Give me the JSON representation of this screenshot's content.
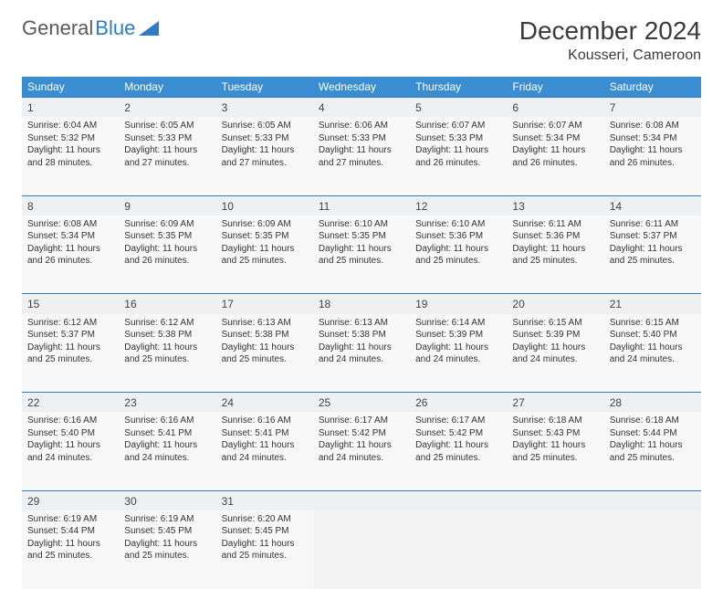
{
  "logo": {
    "text1": "General",
    "text2": "Blue"
  },
  "title": "December 2024",
  "location": "Kousseri, Cameroon",
  "colors": {
    "header_bg": "#3a8dd0",
    "header_text": "#ffffff",
    "accent": "#2d7cc4",
    "daynum_bg": "#eef0f1",
    "cell_bg": "#f8f8f8",
    "text": "#333333"
  },
  "weekdays": [
    "Sunday",
    "Monday",
    "Tuesday",
    "Wednesday",
    "Thursday",
    "Friday",
    "Saturday"
  ],
  "weeks": [
    [
      {
        "n": "1",
        "sunrise": "6:04 AM",
        "sunset": "5:32 PM",
        "daylight": "11 hours and 28 minutes."
      },
      {
        "n": "2",
        "sunrise": "6:05 AM",
        "sunset": "5:33 PM",
        "daylight": "11 hours and 27 minutes."
      },
      {
        "n": "3",
        "sunrise": "6:05 AM",
        "sunset": "5:33 PM",
        "daylight": "11 hours and 27 minutes."
      },
      {
        "n": "4",
        "sunrise": "6:06 AM",
        "sunset": "5:33 PM",
        "daylight": "11 hours and 27 minutes."
      },
      {
        "n": "5",
        "sunrise": "6:07 AM",
        "sunset": "5:33 PM",
        "daylight": "11 hours and 26 minutes."
      },
      {
        "n": "6",
        "sunrise": "6:07 AM",
        "sunset": "5:34 PM",
        "daylight": "11 hours and 26 minutes."
      },
      {
        "n": "7",
        "sunrise": "6:08 AM",
        "sunset": "5:34 PM",
        "daylight": "11 hours and 26 minutes."
      }
    ],
    [
      {
        "n": "8",
        "sunrise": "6:08 AM",
        "sunset": "5:34 PM",
        "daylight": "11 hours and 26 minutes."
      },
      {
        "n": "9",
        "sunrise": "6:09 AM",
        "sunset": "5:35 PM",
        "daylight": "11 hours and 26 minutes."
      },
      {
        "n": "10",
        "sunrise": "6:09 AM",
        "sunset": "5:35 PM",
        "daylight": "11 hours and 25 minutes."
      },
      {
        "n": "11",
        "sunrise": "6:10 AM",
        "sunset": "5:35 PM",
        "daylight": "11 hours and 25 minutes."
      },
      {
        "n": "12",
        "sunrise": "6:10 AM",
        "sunset": "5:36 PM",
        "daylight": "11 hours and 25 minutes."
      },
      {
        "n": "13",
        "sunrise": "6:11 AM",
        "sunset": "5:36 PM",
        "daylight": "11 hours and 25 minutes."
      },
      {
        "n": "14",
        "sunrise": "6:11 AM",
        "sunset": "5:37 PM",
        "daylight": "11 hours and 25 minutes."
      }
    ],
    [
      {
        "n": "15",
        "sunrise": "6:12 AM",
        "sunset": "5:37 PM",
        "daylight": "11 hours and 25 minutes."
      },
      {
        "n": "16",
        "sunrise": "6:12 AM",
        "sunset": "5:38 PM",
        "daylight": "11 hours and 25 minutes."
      },
      {
        "n": "17",
        "sunrise": "6:13 AM",
        "sunset": "5:38 PM",
        "daylight": "11 hours and 25 minutes."
      },
      {
        "n": "18",
        "sunrise": "6:13 AM",
        "sunset": "5:38 PM",
        "daylight": "11 hours and 24 minutes."
      },
      {
        "n": "19",
        "sunrise": "6:14 AM",
        "sunset": "5:39 PM",
        "daylight": "11 hours and 24 minutes."
      },
      {
        "n": "20",
        "sunrise": "6:15 AM",
        "sunset": "5:39 PM",
        "daylight": "11 hours and 24 minutes."
      },
      {
        "n": "21",
        "sunrise": "6:15 AM",
        "sunset": "5:40 PM",
        "daylight": "11 hours and 24 minutes."
      }
    ],
    [
      {
        "n": "22",
        "sunrise": "6:16 AM",
        "sunset": "5:40 PM",
        "daylight": "11 hours and 24 minutes."
      },
      {
        "n": "23",
        "sunrise": "6:16 AM",
        "sunset": "5:41 PM",
        "daylight": "11 hours and 24 minutes."
      },
      {
        "n": "24",
        "sunrise": "6:16 AM",
        "sunset": "5:41 PM",
        "daylight": "11 hours and 24 minutes."
      },
      {
        "n": "25",
        "sunrise": "6:17 AM",
        "sunset": "5:42 PM",
        "daylight": "11 hours and 24 minutes."
      },
      {
        "n": "26",
        "sunrise": "6:17 AM",
        "sunset": "5:42 PM",
        "daylight": "11 hours and 25 minutes."
      },
      {
        "n": "27",
        "sunrise": "6:18 AM",
        "sunset": "5:43 PM",
        "daylight": "11 hours and 25 minutes."
      },
      {
        "n": "28",
        "sunrise": "6:18 AM",
        "sunset": "5:44 PM",
        "daylight": "11 hours and 25 minutes."
      }
    ],
    [
      {
        "n": "29",
        "sunrise": "6:19 AM",
        "sunset": "5:44 PM",
        "daylight": "11 hours and 25 minutes."
      },
      {
        "n": "30",
        "sunrise": "6:19 AM",
        "sunset": "5:45 PM",
        "daylight": "11 hours and 25 minutes."
      },
      {
        "n": "31",
        "sunrise": "6:20 AM",
        "sunset": "5:45 PM",
        "daylight": "11 hours and 25 minutes."
      },
      null,
      null,
      null,
      null
    ]
  ],
  "labels": {
    "sunrise": "Sunrise: ",
    "sunset": "Sunset: ",
    "daylight": "Daylight: "
  }
}
